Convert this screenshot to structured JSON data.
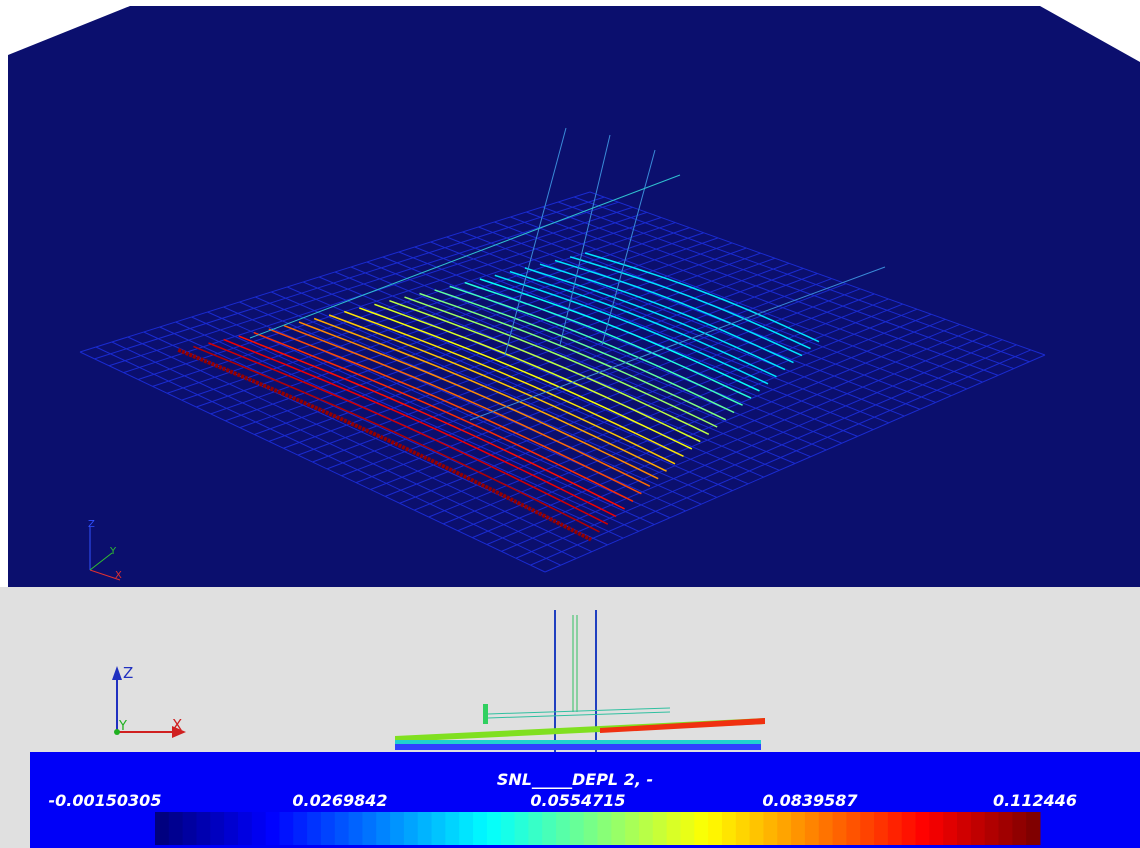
{
  "viewport": {
    "triad": {
      "z": "Z",
      "y": "Y",
      "x": "X"
    }
  },
  "side_view": {
    "triad": {
      "z": "Z",
      "y": "Y",
      "x": "X"
    }
  },
  "color_legend": {
    "title": "SNL_____DEPL 2, -",
    "labels": [
      "-0.00150305",
      "0.0269842",
      "0.0554715",
      "0.0839587",
      "0.112446"
    ]
  }
}
